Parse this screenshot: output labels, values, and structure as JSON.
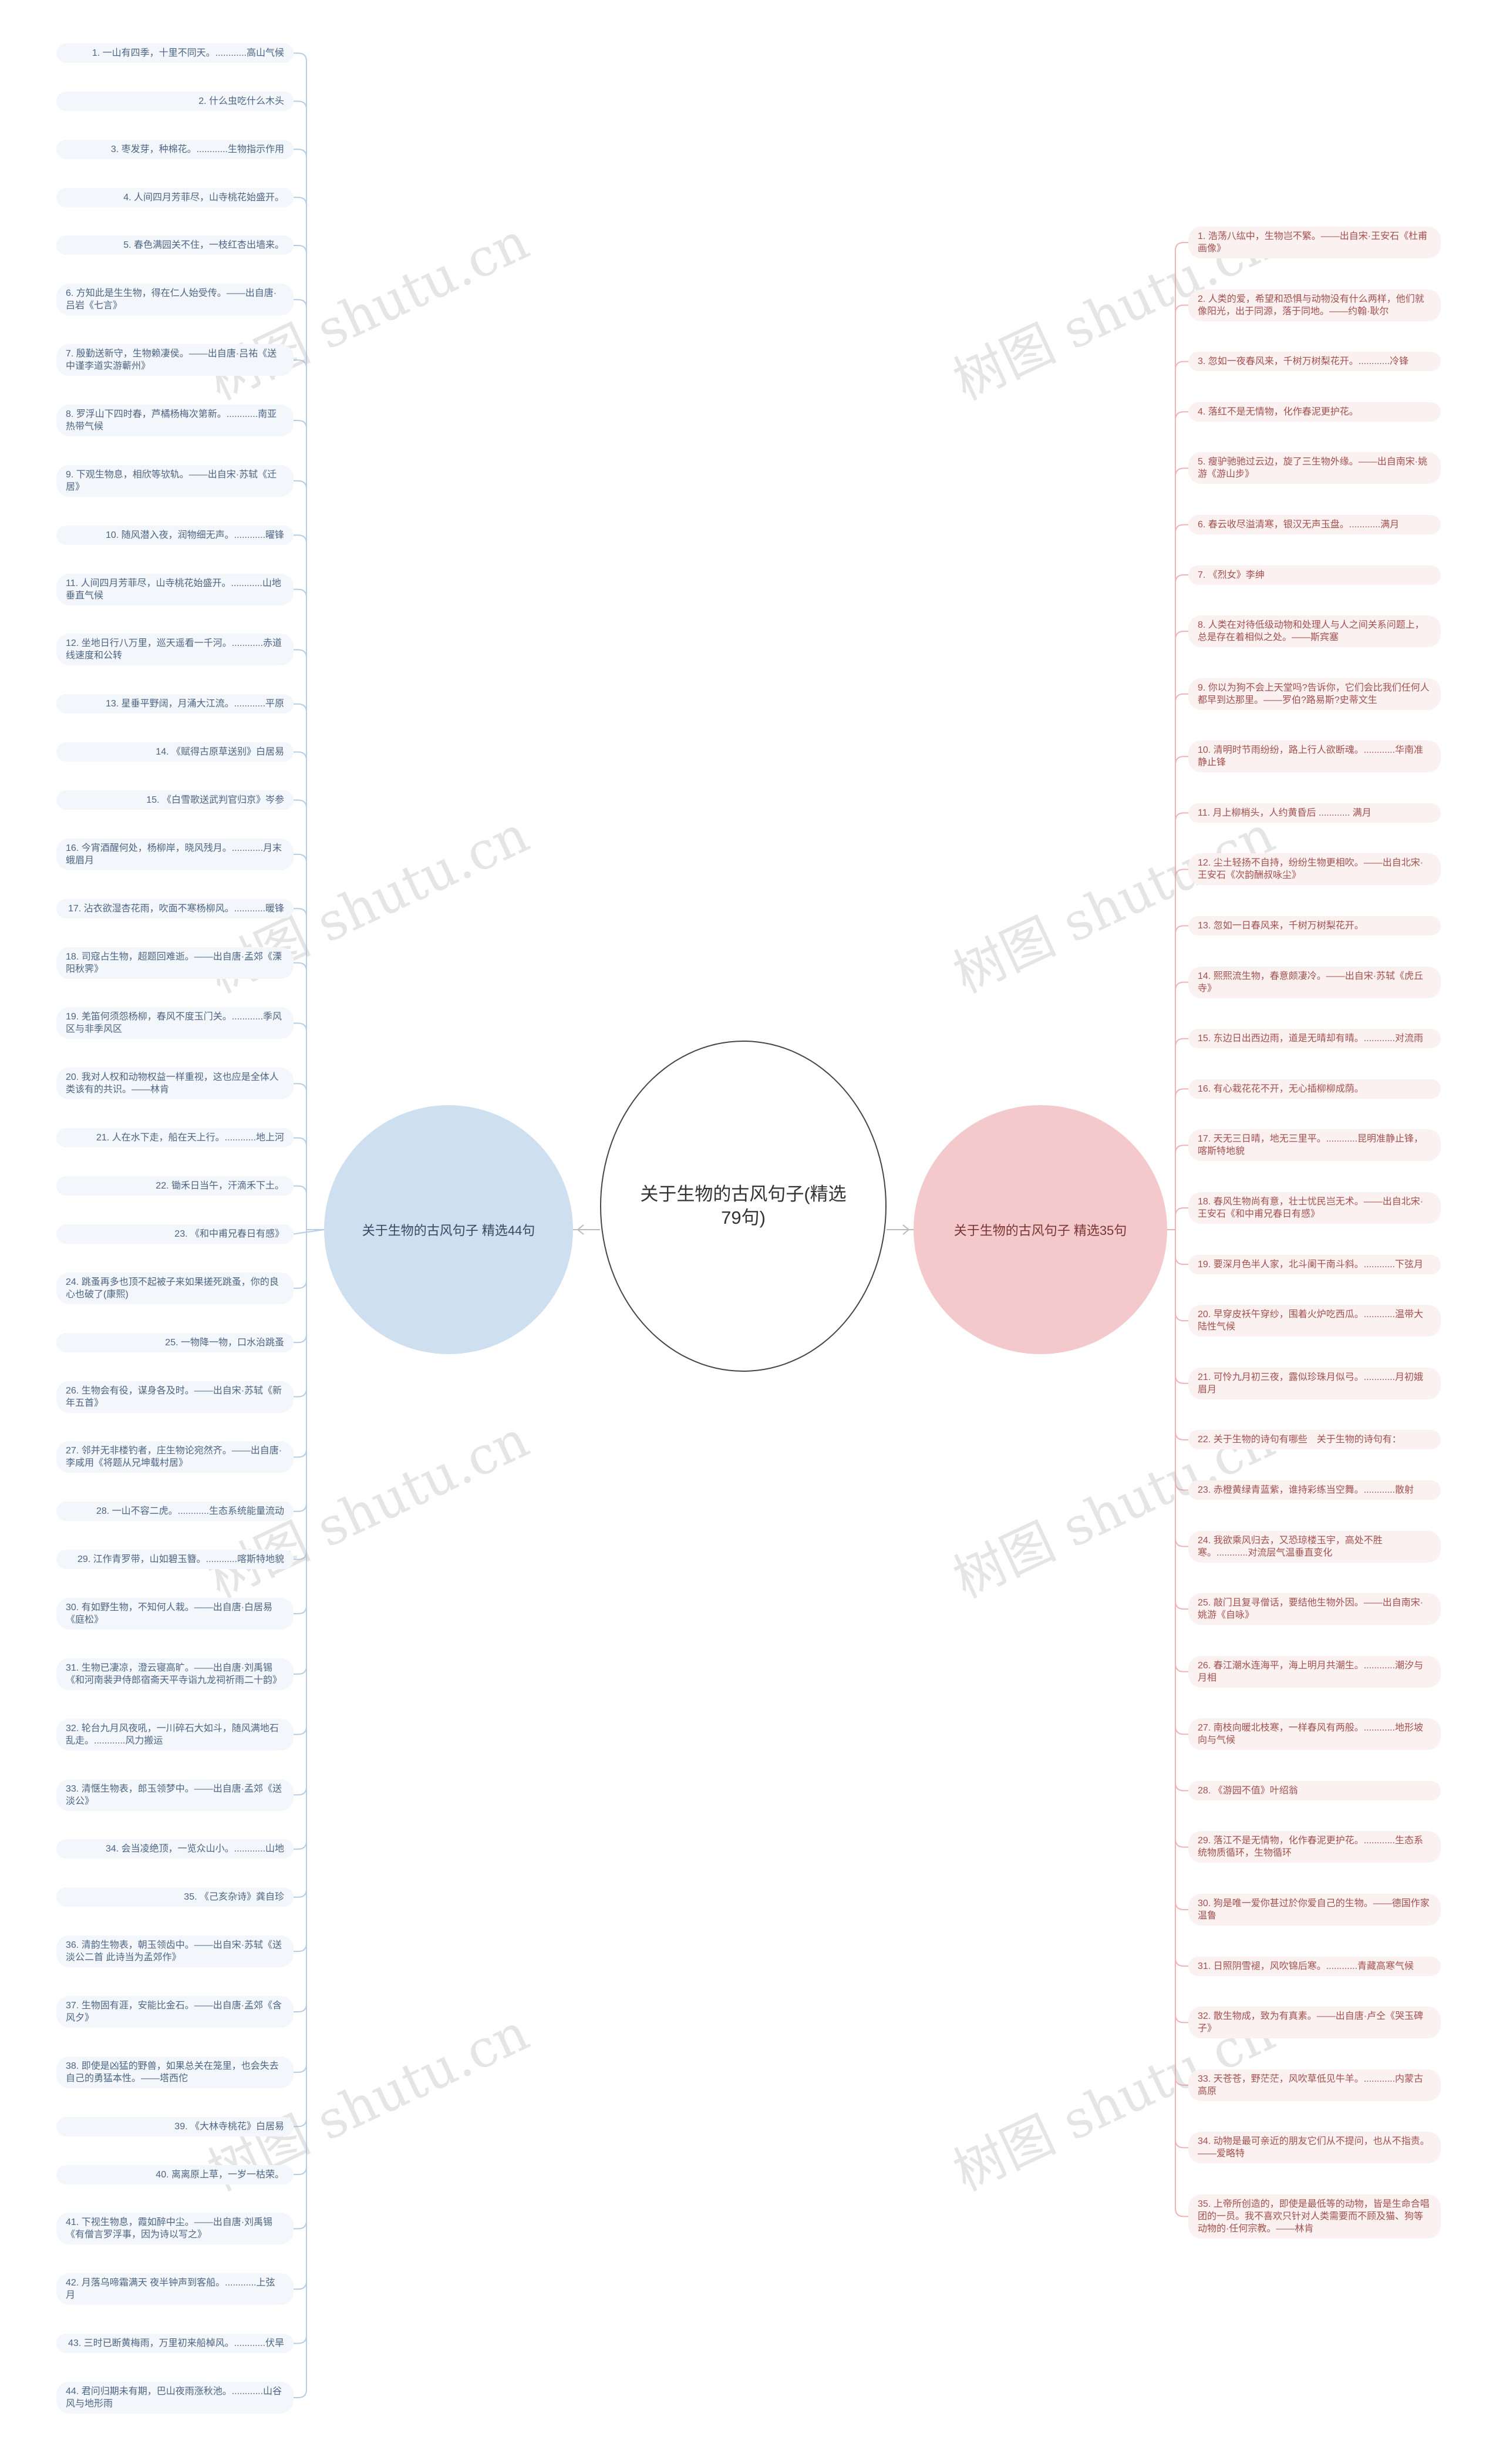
{
  "root": {
    "title": "关于生物的古风句子(精选79句)"
  },
  "left_branch": {
    "label": "关于生物的古风句子 精选44句",
    "items": [
      "1. 一山有四季，十里不同天。............高山气候",
      "2. 什么虫吃什么木头",
      "3. 枣发芽，种棉花。............生物指示作用",
      "4. 人间四月芳菲尽，山寺桃花始盛开。",
      "5. 春色满园关不住，一枝红杏出墙来。",
      "6. 方知此是生生物，得在仁人始受传。——出自唐·吕岩《七言》",
      "7. 殷勤送新守，生物赖凄侯。——出自唐·吕祐《送中谨李道实游蘄州》",
      "8. 罗浮山下四时春，芦橘杨梅次第新。............南亚热带气候",
      "9. 下观生物息，相欣等欤轨。——出自宋·苏轼《迁居》",
      "10. 随风潜入夜，润物细无声。............曜锋",
      "11. 人间四月芳菲尽，山寺桃花始盛开。............山地垂直气候",
      "12. 坐地日行八万里，巡天遥看一千河。............赤道线速度和公转",
      "13. 星垂平野阔，月涌大江流。............平原",
      "14. 《赋得古原草送别》白居易",
      "15. 《白雪歌送武判官归京》岑参",
      "16. 今宵酒醒何处，杨柳岸，晓风残月。............月末蛾眉月",
      "17. 沾衣欲湿杏花雨，吹面不寒杨柳风。............暖锋",
      "18. 司寇占生物，超题回难逝。——出自唐·孟郊《溧阳秋霁》",
      "19. 羌笛何须怨杨柳，春风不度玉门关。............季风区与非季风区",
      "20. 我对人权和动物权益一样重视，这也应是全体人类该有的共识。——林肯",
      "21. 人在水下走，船在天上行。............地上河",
      "22. 锄禾日当午，汗滴禾下土。",
      "23. 《和中甫兄春日有感》",
      "24. 跳蚤再多也顶不起被子来如果搓死跳蚤，你的良心也破了(康熙)",
      "25. 一物降一物，口水治跳蚤",
      "26. 生物会有役，谋身各及时。——出自宋·苏轼《新年五首》",
      "27. 邻并无非楼钓者，庄生物论宛然齐。——出自唐·李咸用《将题从兄坤载村居》",
      "28. 一山不容二虎。............生态系统能量流动",
      "29. 江作青罗带，山如碧玉簪。............喀斯特地貌",
      "30. 有如野生物，不知何人栽。——出自唐·白居易《庭松》",
      "31. 生物已凄凉，澄云寝高旷。——出自唐·刘禹锡《和河南裴尹侍郎宿斋天平寺诣九龙祠祈雨二十韵》",
      "32. 轮台九月风夜吼，一川碎石大如斗，随风满地石乱走。............风力搬运",
      "33. 清惬生物表，郎玉领梦中。——出自唐·孟郊《送淡公》",
      "34. 会当凌绝顶，一览众山小。............山地",
      "35. 《己亥杂诗》龚自珍",
      "36. 清韵生物表，朝玉领齿中。——出自宋·苏轼《送淡公二首 此诗当为孟郊作》",
      "37. 生物固有涯，安能比金石。——出自唐·孟郊《含风夕》",
      "38. 即使是凶猛的野兽，如果总关在笼里，也会失去自己的勇猛本性。——塔西佗",
      "39. 《大林寺桃花》白居易",
      "40. 离离原上草，一岁一枯荣。",
      "41. 下视生物息，霞如醉中尘。——出自唐·刘禹锡《有僧言罗浮事，因为诗以写之》",
      "42. 月落乌啼霜满天 夜半钟声到客船。............上弦月",
      "43. 三时已断黄梅雨，万里初来船棹风。............伏旱",
      "44. 君问归期未有期，巴山夜雨涨秋池。............山谷风与地形雨"
    ]
  },
  "right_branch": {
    "label": "关于生物的古风句子 精选35句",
    "items": [
      "1. 浩荡八纮中，生物岂不繁。——出自宋·王安石《杜甫画像》",
      "2. 人类的爱，希望和恐惧与动物没有什么两样，他们就像阳光，出于同源，落于同地。——约翰·耿尔",
      "3. 忽如一夜春风来，千树万树梨花开。............冷锋",
      "4. 落红不是无情物，化作春泥更护花。",
      "5. 瘦驴驰驰过云边，旋了三生物外缘。——出自南宋·姚游《游山步》",
      "6. 春云收尽溢清寒，银汉无声玉盘。............满月",
      "7. 《烈女》李绅",
      "8. 人类在对待低级动物和处理人与人之间关系问题上，总是存在着相似之处。——斯宾塞",
      "9. 你以为狗不会上天堂吗?告诉你，它们会比我们任何人都早到达那里。——罗伯?路易斯?史蒂文生",
      "10. 清明时节雨纷纷，路上行人欲断魂。............华南准静止锋",
      "11. 月上柳梢头，人约黄昏后 ............ 满月",
      "12. 尘土轻扬不自持，纷纷生物更相吹。——出自北宋·王安石《次韵酬叔咏尘》",
      "13. 忽如一日春风来，千树万树梨花开。",
      "14. 熙熙流生物，春意颇凄冷。——出自宋·苏轼《虎丘寺》",
      "15. 东边日出西边雨，道是无晴却有晴。............对流雨",
      "16. 有心栽花花不开，无心插柳柳成荫。",
      "17. 天无三日晴，地无三里平。............昆明准静止锋，喀斯特地貌",
      "18. 春风生物尚有意，壮士忧民岂无术。——出自北宋·王安石《和中甫兄春日有感》",
      "19. 要深月色半人家，北斗阑干南斗斜。............下弦月",
      "20. 早穿皮袄午穿纱，围着火炉吃西瓜。............温带大陆性气候",
      "21. 可怜九月初三夜，露似珍珠月似弓。............月初娥眉月",
      "22. 关于生物的诗句有哪些　关于生物的诗句有：",
      "23. 赤橙黄绿青蓝紫，谁持彩练当空舞。............散射",
      "24. 我欲乘风归去，又恐琼楼玉宇，高处不胜寒。............对流层气温垂直变化",
      "25. 敲门且复寻僧话，要结他生物外因。——出自南宋·姚游《自咏》",
      "26. 春江潮水连海平，海上明月共潮生。............潮汐与月相",
      "27. 南枝向暖北枝寒，一样春风有两般。............地形坡向与气候",
      "28. 《游园不值》叶绍翁",
      "29. 落江不是无情物，化作春泥更护花。............生态系统物质循环，生物循环",
      "30. 狗是唯一爱你甚过於你爱自己的生物。——德国作家温鲁",
      "31. 日照阴雪褪，风吹锦后寒。............青藏高寒气候",
      "32. 散生物成，致为有真素。——出自唐·卢仝《哭玉碑子》",
      "33. 天苍苍，野茫茫，风吹草低见牛羊。............内蒙古高原",
      "34. 动物是最可亲近的朋友它们从不提问，也从不指责。——爱略特",
      "35. 上帝所创造的，即使是最低等的动物，皆是生命合唱团的一员。我不喜欢只针对人类需要而不顾及猫、狗等动物的·任何宗教。——林肯"
    ]
  },
  "watermark": {
    "text": "树图 shutu.cn"
  }
}
